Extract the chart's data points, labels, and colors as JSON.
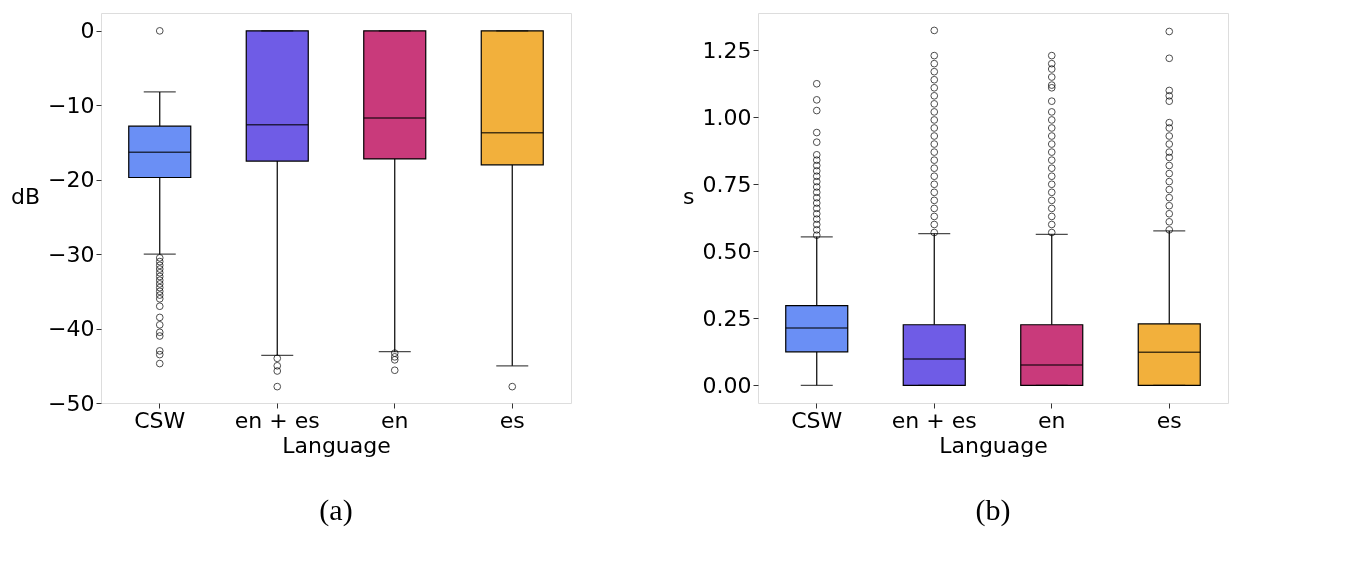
{
  "chart_data": [
    {
      "type": "box",
      "title": "(a)",
      "xlabel": "Language",
      "ylabel": "dB",
      "categories": [
        "CSW",
        "en + es",
        "en",
        "es"
      ],
      "colors": [
        "#6a8ff5",
        "#6f5ce6",
        "#c93a7b",
        "#f2b03c"
      ],
      "ylim": [
        -50,
        2.4
      ],
      "yticks": [
        {
          "value": 0,
          "label": "0"
        },
        {
          "value": -10,
          "label": "−10"
        },
        {
          "value": -20,
          "label": "−20"
        },
        {
          "value": -30,
          "label": "−30"
        },
        {
          "value": -40,
          "label": "−40"
        },
        {
          "value": -50,
          "label": "−50"
        }
      ],
      "grid": false,
      "legend": false,
      "boxes": [
        {
          "low": -30,
          "q1": -19.7,
          "median": -16.3,
          "q3": -12.8,
          "high": -8.2,
          "outliers": [
            0,
            -30.5,
            -31,
            -31.5,
            -32,
            -32.5,
            -33,
            -33.5,
            -34,
            -34.5,
            -35,
            -35.5,
            -36,
            -37,
            -38.5,
            -39.5,
            -40.5,
            -41,
            -43,
            -43.5,
            -44.7
          ]
        },
        {
          "low": -43.6,
          "q1": -17.5,
          "median": -12.6,
          "q3": 0,
          "high": 0,
          "outliers": [
            -44,
            -45,
            -45.7,
            -47.8
          ]
        },
        {
          "low": -43.1,
          "q1": -17.2,
          "median": -11.7,
          "q3": 0,
          "high": 0,
          "outliers": [
            -43.3,
            -43.8,
            -44.2,
            -45.6
          ]
        },
        {
          "low": -45,
          "q1": -18,
          "median": -13.7,
          "q3": 0,
          "high": 0,
          "outliers": [
            -47.8
          ]
        }
      ]
    },
    {
      "type": "box",
      "title": "(b)",
      "xlabel": "Language",
      "ylabel": "s",
      "categories": [
        "CSW",
        "en + es",
        "en",
        "es"
      ],
      "colors": [
        "#6a8ff5",
        "#6f5ce6",
        "#c93a7b",
        "#f2b03c"
      ],
      "ylim": [
        -0.066,
        1.389
      ],
      "yticks": [
        {
          "value": 0,
          "label": "0.00"
        },
        0.25,
        {
          "value": 0.5,
          "label": "0.50"
        },
        0.75,
        {
          "value": 1,
          "label": "1.00"
        },
        1.25
      ],
      "grid": false,
      "legend": false,
      "boxes": [
        {
          "low": 0,
          "q1": 0.125,
          "median": 0.214,
          "q3": 0.297,
          "high": 0.554,
          "outliers": [
            0.56,
            0.58,
            0.6,
            0.62,
            0.64,
            0.66,
            0.68,
            0.7,
            0.72,
            0.74,
            0.76,
            0.78,
            0.8,
            0.82,
            0.84,
            0.86,
            0.907,
            0.943,
            1.025,
            1.065,
            1.125
          ]
        },
        {
          "low": 0,
          "q1": 0,
          "median": 0.098,
          "q3": 0.226,
          "high": 0.566,
          "outliers": [
            0.57,
            0.6,
            0.63,
            0.66,
            0.69,
            0.72,
            0.75,
            0.78,
            0.81,
            0.84,
            0.87,
            0.9,
            0.93,
            0.96,
            0.99,
            1.02,
            1.05,
            1.08,
            1.11,
            1.14,
            1.17,
            1.2,
            1.23,
            1.324
          ]
        },
        {
          "low": 0,
          "q1": 0,
          "median": 0.076,
          "q3": 0.226,
          "high": 0.563,
          "outliers": [
            0.57,
            0.6,
            0.63,
            0.66,
            0.69,
            0.72,
            0.75,
            0.78,
            0.81,
            0.84,
            0.87,
            0.9,
            0.93,
            0.96,
            0.99,
            1.02,
            1.06,
            1.11,
            1.12,
            1.15,
            1.18,
            1.2,
            1.23
          ]
        },
        {
          "low": 0,
          "q1": 0,
          "median": 0.123,
          "q3": 0.229,
          "high": 0.576,
          "outliers": [
            0.58,
            0.61,
            0.64,
            0.67,
            0.7,
            0.73,
            0.76,
            0.79,
            0.82,
            0.85,
            0.87,
            0.9,
            0.93,
            0.96,
            0.98,
            1.06,
            1.08,
            1.1,
            1.22,
            1.32
          ]
        }
      ]
    }
  ]
}
